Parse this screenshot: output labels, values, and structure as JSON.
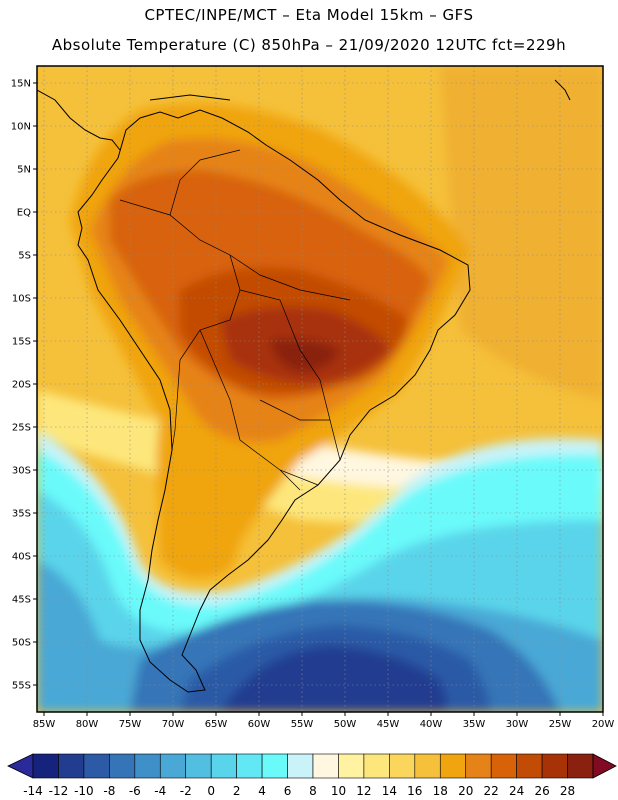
{
  "header": {
    "title": "CPTEC/INPE/MCT –  Eta Model 15km – GFS",
    "subtitle": "Absolute Temperature (C) 850hPa – 21/09/2020 12UTC fct=229h"
  },
  "map": {
    "lat_labels": [
      "15N",
      "10N",
      "5N",
      "EQ",
      "5S",
      "10S",
      "15S",
      "20S",
      "25S",
      "30S",
      "35S",
      "40S",
      "45S",
      "50S",
      "55S"
    ],
    "lon_labels": [
      "85W",
      "80W",
      "75W",
      "70W",
      "65W",
      "60W",
      "55W",
      "50W",
      "45W",
      "40W",
      "35W",
      "30W",
      "25W",
      "20W"
    ]
  },
  "colorbar": {
    "tick_labels": [
      "-14",
      "-12",
      "-10",
      "-8",
      "-6",
      "-4",
      "-2",
      "0",
      "2",
      "4",
      "6",
      "8",
      "10",
      "12",
      "14",
      "16",
      "18",
      "20",
      "22",
      "24",
      "26",
      "28"
    ],
    "colors": [
      "#16237d",
      "#223c90",
      "#2c5aa6",
      "#3674b8",
      "#3f8fc8",
      "#49a8d6",
      "#52bfe0",
      "#5ad4ea",
      "#62e8f4",
      "#6afafa",
      "#c9f3f8",
      "#fff7e0",
      "#fff2a0",
      "#fde77c",
      "#fbd65c",
      "#f5c03a",
      "#f0a410",
      "#e68318",
      "#d86208",
      "#c24c06",
      "#a83208",
      "#892010"
    ],
    "under_color": "#2a2a9a",
    "over_color": "#820a22"
  }
}
